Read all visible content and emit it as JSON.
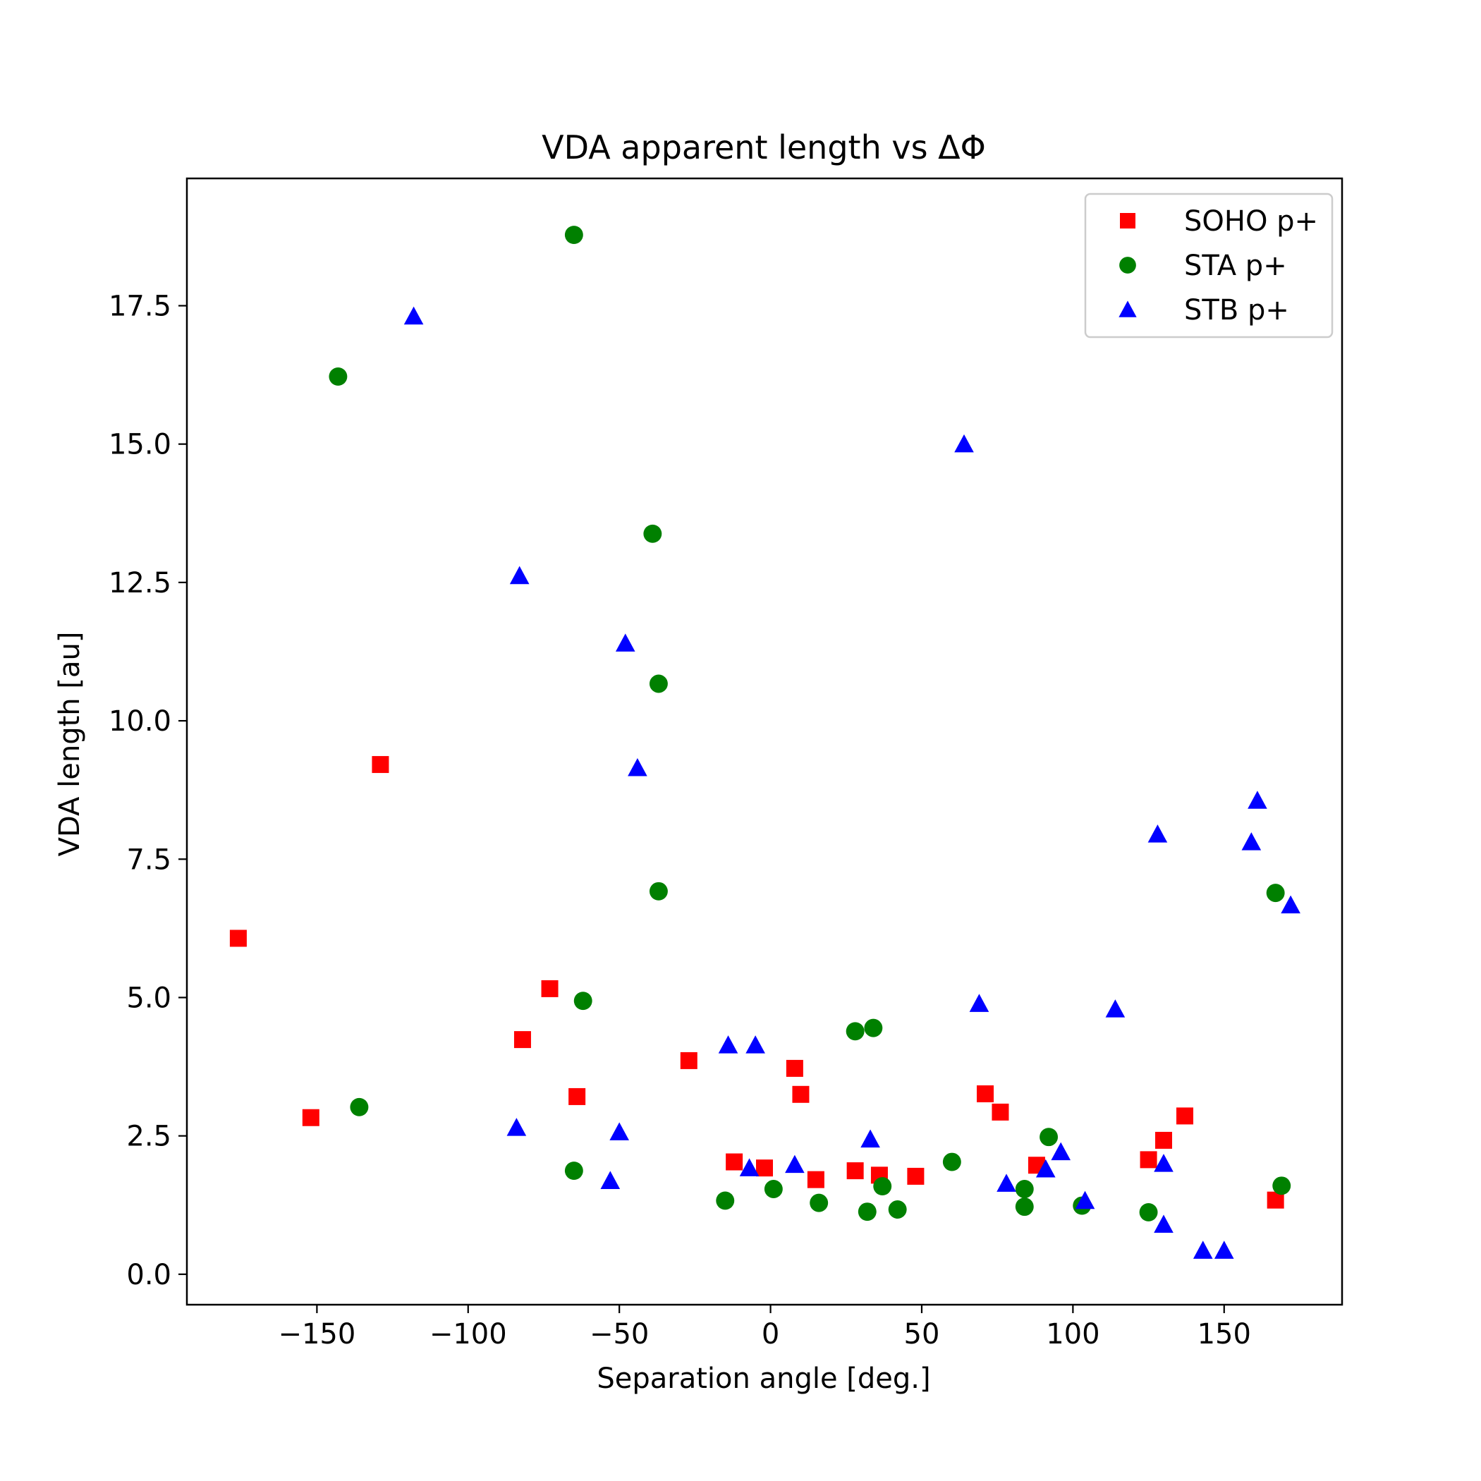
{
  "chart_data": {
    "type": "scatter",
    "title": "VDA apparent length vs ΔΦ",
    "xlabel": "Separation angle [deg.]",
    "ylabel": "VDA length [au]",
    "xlim": [
      -193,
      189
    ],
    "ylim": [
      -0.55,
      19.8
    ],
    "xticks": [
      -150,
      -100,
      -50,
      0,
      50,
      100,
      150
    ],
    "xtick_labels": [
      "−150",
      "−100",
      "−50",
      "0",
      "50",
      "100",
      "150"
    ],
    "yticks": [
      0.0,
      2.5,
      5.0,
      7.5,
      10.0,
      12.5,
      15.0,
      17.5
    ],
    "ytick_labels": [
      "0.0",
      "2.5",
      "5.0",
      "7.5",
      "10.0",
      "12.5",
      "15.0",
      "17.5"
    ],
    "grid": false,
    "legend_position": "upper right",
    "series": [
      {
        "name": "SOHO p+",
        "marker": "square",
        "color": "#ff0000",
        "x": [
          -176,
          -152,
          -129,
          -82,
          -73,
          -64,
          -27,
          -12,
          -2,
          8,
          10,
          15,
          28,
          36,
          48,
          71,
          76,
          88,
          125,
          130,
          137,
          167
        ],
        "y": [
          6.07,
          2.83,
          9.21,
          4.24,
          5.16,
          3.21,
          3.86,
          2.03,
          1.92,
          3.72,
          3.25,
          1.71,
          1.87,
          1.79,
          1.77,
          3.26,
          2.93,
          1.97,
          2.07,
          2.42,
          2.86,
          1.34
        ]
      },
      {
        "name": "STA p+",
        "marker": "circle",
        "color": "#008000",
        "x": [
          -143,
          -136,
          -65,
          -65,
          -62,
          -39,
          -37,
          -37,
          -15,
          1,
          16,
          28,
          32,
          34,
          37,
          42,
          60,
          84,
          84,
          92,
          103,
          125,
          167,
          169
        ],
        "y": [
          16.22,
          3.02,
          18.78,
          1.87,
          4.94,
          13.38,
          10.67,
          6.92,
          1.33,
          1.54,
          1.29,
          4.39,
          1.13,
          4.45,
          1.59,
          1.17,
          2.03,
          1.54,
          1.22,
          2.48,
          1.24,
          1.12,
          6.89,
          1.6
        ]
      },
      {
        "name": "STB p+",
        "marker": "triangle",
        "color": "#0000ff",
        "x": [
          -118,
          -83,
          -84,
          -48,
          -44,
          -50,
          -53,
          -14,
          -5,
          -7,
          8,
          33,
          64,
          69,
          78,
          91,
          96,
          104,
          114,
          128,
          130,
          130,
          143,
          150,
          159,
          161,
          172
        ],
        "y": [
          17.31,
          12.62,
          2.65,
          11.4,
          9.15,
          2.57,
          1.69,
          4.14,
          4.14,
          1.92,
          1.98,
          2.44,
          15.0,
          4.89,
          1.64,
          1.9,
          2.21,
          1.33,
          4.79,
          7.95,
          2.0,
          0.9,
          0.43,
          0.43,
          7.81,
          8.56,
          6.67
        ]
      }
    ]
  }
}
